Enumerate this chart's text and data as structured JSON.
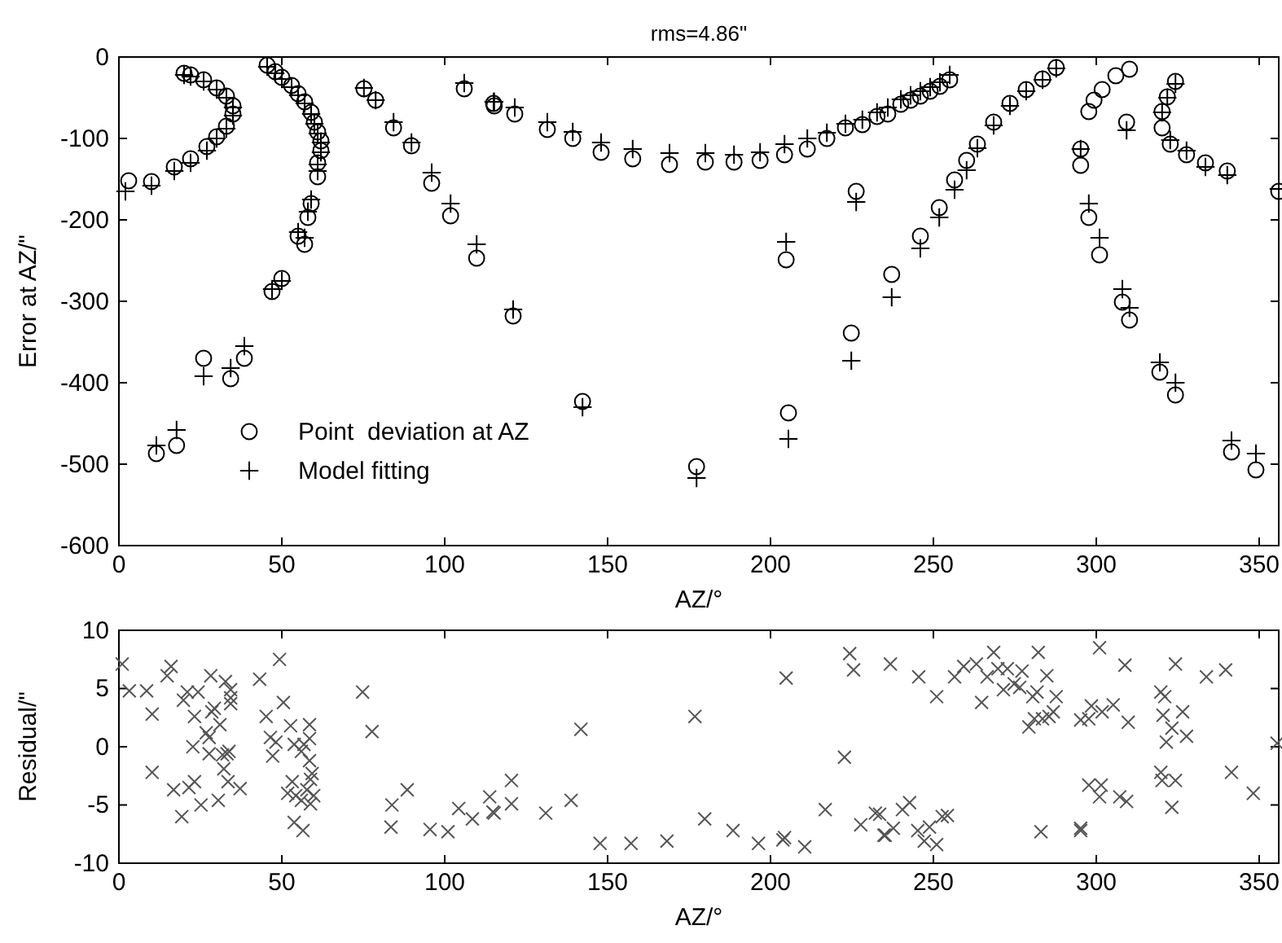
{
  "chart_data": [
    {
      "type": "scatter",
      "title": "rms=4.86\"",
      "xlabel": "AZ/°",
      "ylabel": "Error at AZ/\"",
      "xlim": [
        0,
        356
      ],
      "ylim": [
        -600,
        0
      ],
      "xticks": [
        0,
        50,
        100,
        150,
        200,
        250,
        300,
        350
      ],
      "yticks": [
        0,
        -100,
        -200,
        -300,
        -400,
        -500,
        -600
      ],
      "legend": "bottom left",
      "series": [
        {
          "name": "Point  deviation at AZ",
          "color": "#000000",
          "marker": "circle",
          "x": [
            3,
            10,
            17,
            22,
            27,
            30,
            33,
            35,
            35,
            33,
            30,
            26,
            22,
            20,
            45.5,
            48,
            50,
            53,
            55,
            57,
            59,
            60,
            61,
            62,
            62,
            61,
            61,
            59,
            58,
            57,
            55,
            50,
            47,
            11.5,
            17.7,
            26,
            34.3,
            38.5,
            75.2,
            78.8,
            84.3,
            89.8,
            96,
            101.8,
            109.8,
            106,
            115,
            115.2,
            121.5,
            131.5,
            139.3,
            148,
            157.7,
            169,
            180,
            188.8,
            196.8,
            204.3,
            211.3,
            217.3,
            223,
            228.2,
            232.7,
            236,
            121,
            142.3,
            177.3,
            204.8,
            205.5,
            226.3,
            224.8,
            237.2,
            240,
            243,
            246,
            249,
            252,
            255,
            246,
            251.8,
            256.5,
            260.2,
            263.5,
            268.5,
            273.5,
            278.5,
            283.5,
            287.7,
            295.2,
            295.2,
            297.7,
            299.3,
            301.8,
            306,
            310.2,
            309.3,
            297.7,
            301,
            308,
            310.2,
            319.5,
            324.3,
            341.5,
            349,
            356,
            324.3,
            321.8,
            320.2,
            320.2,
            322.7,
            327.7,
            333.5,
            340.2
          ],
          "values": [
            -152,
            -153,
            -135,
            -125,
            -110,
            -98,
            -85,
            -70,
            -60,
            -48,
            -38,
            -28,
            -22,
            -20,
            -10,
            -18,
            -25,
            -35,
            -45,
            -55,
            -68,
            -80,
            -92,
            -103,
            -115,
            -130,
            -147,
            -180,
            -197,
            -230,
            -220,
            -272,
            -288,
            -487,
            -477,
            -370,
            -395,
            -370,
            -39,
            -53,
            -87,
            -109,
            -155,
            -195,
            -247,
            -39,
            -57,
            -60,
            -70,
            -89,
            -100,
            -117,
            -125,
            -132,
            -129,
            -129,
            -127,
            -120,
            -113,
            -100,
            -87,
            -83,
            -73,
            -70,
            -318,
            -423,
            -503,
            -249,
            -437,
            -165,
            -339,
            -267,
            -58,
            -53,
            -48,
            -42,
            -36,
            -28,
            -220,
            -185,
            -151,
            -127,
            -107,
            -80,
            -57,
            -40,
            -27,
            -13,
            -133,
            -113,
            -67,
            -53,
            -40,
            -23,
            -15,
            -80,
            -197,
            -243,
            -301,
            -323,
            -387,
            -415,
            -485,
            -507,
            -165,
            -30,
            -49,
            -67,
            -87,
            -107,
            -120,
            -130,
            -140
          ]
        },
        {
          "name": "Model fitting",
          "color": "#000000",
          "marker": "cross",
          "x": [
            2,
            10,
            17,
            22,
            27,
            30,
            33,
            35,
            35,
            33,
            30,
            26,
            22,
            20,
            45.5,
            48,
            50,
            53,
            55,
            57,
            59,
            60,
            61,
            62,
            62,
            61,
            61,
            59,
            58,
            57,
            55,
            50,
            47,
            11.5,
            17.7,
            26,
            34.3,
            38.5,
            75.2,
            78.8,
            84.3,
            89.8,
            96,
            101.8,
            109.8,
            106,
            115,
            115.2,
            121.5,
            131.5,
            139.3,
            148,
            157.7,
            169,
            180,
            188.8,
            196.8,
            204.3,
            211.3,
            217.3,
            223,
            228.2,
            232.7,
            236,
            121,
            142.3,
            177.3,
            204.8,
            205.5,
            226.3,
            224.8,
            237.2,
            240,
            243,
            246,
            249,
            252,
            255,
            246,
            251.8,
            256.5,
            260.2,
            263.5,
            268.5,
            273.5,
            278.5,
            283.5,
            287.7,
            295.2,
            297.7,
            301,
            308,
            310.2,
            319.5,
            324.3,
            341.5,
            349,
            356,
            309.3,
            324.3,
            321.8,
            320.2,
            322.7,
            327.7,
            333.5,
            340.2
          ],
          "values": [
            -165,
            -158,
            -140,
            -130,
            -115,
            -100,
            -88,
            -72,
            -62,
            -50,
            -40,
            -30,
            -24,
            -22,
            -12,
            -20,
            -27,
            -37,
            -47,
            -57,
            -70,
            -82,
            -94,
            -105,
            -117,
            -132,
            -140,
            -175,
            -190,
            -222,
            -215,
            -275,
            -285,
            -477,
            -458,
            -392,
            -382,
            -355,
            -38,
            -53,
            -80,
            -105,
            -142,
            -180,
            -230,
            -32,
            -55,
            -55,
            -62,
            -80,
            -92,
            -105,
            -113,
            -118,
            -118,
            -120,
            -117,
            -107,
            -100,
            -93,
            -82,
            -77,
            -68,
            -62,
            -310,
            -430,
            -517,
            -227,
            -469,
            -178,
            -373,
            -295,
            -52,
            -47,
            -42,
            -37,
            -31,
            -22,
            -235,
            -197,
            -163,
            -139,
            -112,
            -84,
            -60,
            -42,
            -28,
            -14,
            -113,
            -180,
            -222,
            -285,
            -308,
            -375,
            -400,
            -471,
            -487,
            -162,
            -90,
            -33,
            -50,
            -68,
            -102,
            -115,
            -135,
            -145
          ]
        }
      ]
    },
    {
      "type": "scatter",
      "xlabel": "AZ/°",
      "ylabel": "Residual/\"",
      "xlim": [
        0,
        356
      ],
      "ylim": [
        -10,
        10
      ],
      "xticks": [
        0,
        50,
        100,
        150,
        200,
        250,
        300,
        350
      ],
      "yticks": [
        -10,
        -5,
        0,
        5,
        10
      ],
      "series": [
        {
          "color": "#555555",
          "marker": "cross",
          "x": [
            1,
            3.2,
            8.5,
            10.2,
            10.2,
            14.8,
            16,
            16.8,
            19.3,
            19.8,
            21,
            21.5,
            22.7,
            23.2,
            23.2,
            24.3,
            25.2,
            28.2,
            26.8,
            27.7,
            28.5,
            29.3,
            27.7,
            30.5,
            31,
            31.8,
            32.2,
            32.7,
            33.2,
            33.5,
            33.8,
            34.3,
            34.3,
            34.3,
            37.2,
            43.2,
            45.2,
            46.5,
            47.2,
            48.2,
            49.3,
            50.5,
            51.8,
            52.7,
            53.2,
            53.8,
            54.3,
            53.8,
            56,
            56,
            56.5,
            56.8,
            57.7,
            58.5,
            58.5,
            58.5,
            58.8,
            58.8,
            59.3,
            59.8,
            74.8,
            77.7,
            83.8,
            83.5,
            88.5,
            95.5,
            101,
            104.3,
            108.5,
            113.8,
            114.8,
            115.2,
            120.5,
            120.5,
            131,
            138.8,
            141.8,
            147.7,
            157.2,
            168.2,
            176.8,
            179.8,
            188.5,
            196.3,
            204.3,
            203.8,
            204.8,
            210.5,
            216.8,
            222.7,
            224.3,
            225.5,
            227.7,
            232.2,
            235.2,
            236.8,
            237.7,
            245.5,
            251,
            256.5,
            259.3,
            263.2,
            264.8,
            266.5,
            268.5,
            269.8,
            271.5,
            272.7,
            274.8,
            276.5,
            277.2,
            279.3,
            280.5,
            281.8,
            281,
            282.2,
            283.5,
            284.8,
            285.5,
            286.8,
            287.7,
            295.2,
            297.7,
            298.5,
            301.8,
            305.2,
            309.8,
            301,
            308.8,
            319.8,
            321,
            320.5,
            323.2,
            321.5,
            326.5,
            327.7,
            324.3,
            333.8,
            339.7,
            341.5,
            348.2,
            355.5,
            233.5,
            234.8,
            240.5,
            242.7,
            245.2,
            247.2,
            248.8,
            251,
            252.7,
            254.3,
            283,
            295.2,
            295.2,
            297.7,
            301.5,
            301,
            307.2,
            309.3,
            319.8,
            320.2,
            324.3,
            323.2
          ],
          "values": [
            7.1,
            4.8,
            4.8,
            2.8,
            -2.2,
            6.1,
            6.9,
            -3.7,
            -6,
            4,
            4.7,
            -3.5,
            0,
            2.6,
            -3,
            4.7,
            -5,
            6.1,
            1.2,
            0.8,
            3,
            3.3,
            -0.6,
            -4.6,
            1.9,
            -0.7,
            -1.9,
            5.6,
            -0.6,
            -3,
            -0.4,
            4.2,
            4.9,
            3.7,
            -3.6,
            5.8,
            2.6,
            0.8,
            -0.8,
            0.4,
            7.5,
            3.8,
            -4,
            1.8,
            -3,
            -6.5,
            -4.2,
            0.2,
            -0.4,
            -4.6,
            -7.2,
            0.2,
            -3.7,
            1.9,
            0.7,
            -1.2,
            -2.8,
            -4.9,
            -2.3,
            -4.2,
            4.7,
            1.3,
            -5,
            -6.9,
            -3.7,
            -7.1,
            -7.3,
            -5.3,
            -6.2,
            -4.3,
            -5.6,
            -5.7,
            -2.9,
            -4.9,
            -5.7,
            -4.6,
            1.5,
            -8.3,
            -8.3,
            -8.1,
            2.6,
            -6.2,
            -7.2,
            -8.3,
            -7.8,
            -8,
            5.9,
            -8.6,
            -5.4,
            -0.9,
            8,
            6.6,
            -6.7,
            -5.7,
            -7.6,
            7.1,
            -7,
            6,
            4.3,
            6,
            6.9,
            7.1,
            3.8,
            6,
            8.1,
            6.7,
            4.9,
            6.7,
            5.4,
            5.1,
            6.5,
            1.7,
            4.3,
            4.7,
            2.4,
            8.1,
            2.4,
            6.1,
            2.6,
            3,
            4.3,
            2.3,
            2.4,
            3.5,
            3,
            3.6,
            2.1,
            8.5,
            7,
            4.7,
            4.3,
            2.7,
            1.6,
            0.4,
            3,
            0.9,
            7.1,
            6,
            6.6,
            -2.2,
            -4,
            0.3,
            -5.8,
            -7.6,
            -5.4,
            -4.8,
            -7.2,
            -8.1,
            -6.9,
            -8.4,
            -6,
            -5.9,
            -7.3,
            -7,
            -7.2,
            -3.3,
            -3.3,
            -4.3,
            -4.3,
            -4.7,
            -2.2,
            -2.9,
            -2.9,
            -5.2
          ]
        }
      ]
    }
  ]
}
